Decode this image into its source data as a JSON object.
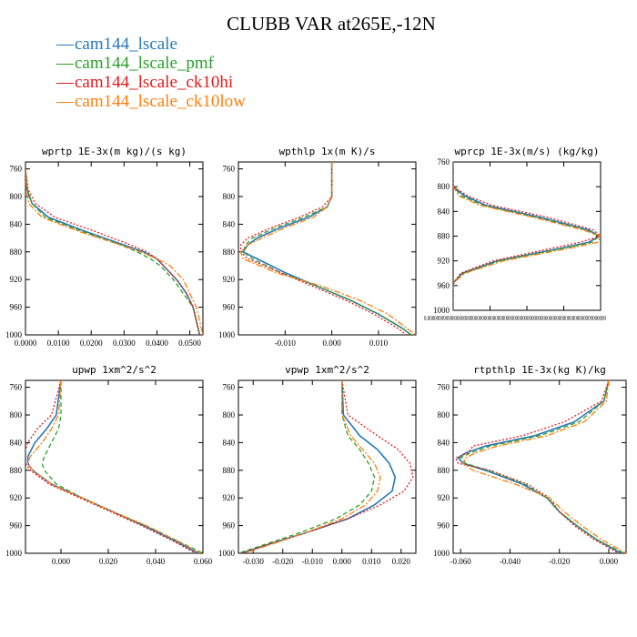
{
  "page": {
    "title": "CLUBB VAR at265E,-12N"
  },
  "legend": [
    {
      "label": "cam144_lscale",
      "color": "#2878b8"
    },
    {
      "label": "cam144_lscale_pmf",
      "color": "#2ca02c"
    },
    {
      "label": "cam144_lscale_ck10hi",
      "color": "#e41a1c"
    },
    {
      "label": "cam144_lscale_ck10low",
      "color": "#ff7f0e"
    }
  ],
  "chart_data": [
    {
      "type": "line",
      "title": "wprtp  1E-3x(m kg)/(s kg)",
      "xlim": [
        0,
        0.054
      ],
      "ylim": [
        750,
        1000
      ],
      "y_reversed": true,
      "xticks": [
        0,
        0.01,
        0.02,
        0.03,
        0.04,
        0.05
      ],
      "xticklabels": [
        "0.0000",
        "0.0100",
        "0.0200",
        "0.0300",
        "0.0400",
        "0.0500"
      ],
      "yticks": [
        760,
        800,
        840,
        880,
        920,
        960,
        1000
      ],
      "yticklabels": [
        "760",
        "800",
        "840",
        "880",
        "920",
        "960",
        "1000"
      ],
      "series": [
        {
          "name": "cam144_lscale",
          "y": [
            760,
            790,
            810,
            830,
            850,
            870,
            880,
            890,
            900,
            920,
            940,
            960,
            980,
            1000
          ],
          "x": [
            0,
            0.0005,
            0.002,
            0.007,
            0.018,
            0.03,
            0.036,
            0.04,
            0.042,
            0.046,
            0.049,
            0.051,
            0.052,
            0.053
          ]
        },
        {
          "name": "cam144_lscale_pmf",
          "y": [
            760,
            790,
            810,
            830,
            850,
            870,
            880,
            890,
            900,
            920,
            940,
            960,
            980,
            1000
          ],
          "x": [
            0,
            0.0005,
            0.002,
            0.006,
            0.017,
            0.029,
            0.034,
            0.038,
            0.041,
            0.045,
            0.048,
            0.051,
            0.052,
            0.053
          ]
        },
        {
          "name": "cam144_lscale_ck10hi",
          "y": [
            760,
            790,
            810,
            830,
            850,
            870,
            880,
            890,
            900,
            920,
            940,
            960,
            980,
            1000
          ],
          "x": [
            0,
            0.0008,
            0.003,
            0.009,
            0.021,
            0.032,
            0.037,
            0.04,
            0.042,
            0.046,
            0.049,
            0.051,
            0.052,
            0.053
          ]
        },
        {
          "name": "cam144_lscale_ck10low",
          "y": [
            760,
            790,
            810,
            830,
            850,
            870,
            880,
            890,
            900,
            920,
            940,
            960,
            980,
            1000
          ],
          "x": [
            0,
            0.0003,
            0.001,
            0.005,
            0.016,
            0.029,
            0.035,
            0.04,
            0.044,
            0.048,
            0.05,
            0.052,
            0.053,
            0.054
          ]
        }
      ]
    },
    {
      "type": "line",
      "title": "wpthlp  1x(m K)/s",
      "xlim": [
        -0.02,
        0.018
      ],
      "ylim": [
        750,
        1000
      ],
      "y_reversed": true,
      "xticks": [
        -0.01,
        0,
        0.01
      ],
      "xticklabels": [
        "-0.010",
        "0.000",
        "0.010"
      ],
      "yticks": [
        760,
        800,
        840,
        880,
        920,
        960,
        1000
      ],
      "yticklabels": [
        "760",
        "800",
        "840",
        "880",
        "920",
        "960",
        "1000"
      ],
      "series": [
        {
          "name": "cam144_lscale",
          "y": [
            750,
            800,
            815,
            830,
            845,
            860,
            870,
            880,
            890,
            910,
            930,
            950,
            970,
            990,
            1000
          ],
          "x": [
            0,
            0,
            -0.001,
            -0.005,
            -0.011,
            -0.016,
            -0.018,
            -0.019,
            -0.016,
            -0.01,
            -0.003,
            0.004,
            0.01,
            0.015,
            0.017
          ]
        },
        {
          "name": "cam144_lscale_pmf",
          "y": [
            750,
            800,
            815,
            830,
            845,
            860,
            870,
            880,
            890,
            910,
            930,
            950,
            970,
            990,
            1000
          ],
          "x": [
            0,
            0,
            -0.001,
            -0.006,
            -0.012,
            -0.017,
            -0.0185,
            -0.019,
            -0.017,
            -0.011,
            -0.003,
            0.004,
            0.01,
            0.015,
            0.017
          ]
        },
        {
          "name": "cam144_lscale_ck10hi",
          "y": [
            750,
            800,
            815,
            830,
            845,
            860,
            870,
            880,
            890,
            910,
            930,
            950,
            970,
            990,
            1000
          ],
          "x": [
            0,
            0,
            -0.002,
            -0.007,
            -0.013,
            -0.018,
            -0.0195,
            -0.0195,
            -0.018,
            -0.011,
            -0.004,
            0.003,
            0.009,
            0.014,
            0.016
          ]
        },
        {
          "name": "cam144_lscale_ck10low",
          "y": [
            750,
            800,
            815,
            830,
            845,
            860,
            870,
            880,
            890,
            910,
            930,
            950,
            970,
            990,
            1000
          ],
          "x": [
            0,
            0,
            -0.001,
            -0.004,
            -0.01,
            -0.015,
            -0.018,
            -0.0195,
            -0.019,
            -0.012,
            -0.002,
            0.006,
            0.012,
            0.016,
            0.018
          ]
        }
      ]
    },
    {
      "type": "line",
      "title": "wprcp  1E-3x(m/s) (kg/kg)",
      "xlim": [
        0,
        1
      ],
      "ylim": [
        760,
        1000
      ],
      "y_reversed": true,
      "xticks": [
        0,
        0.25,
        0.5,
        0.75,
        1
      ],
      "xticklabels": [],
      "xaxis_label_text": "0.0000000000000000000000000000000000000000000000000000000000000000000000009000000",
      "yticks": [
        760,
        800,
        840,
        880,
        920,
        960,
        1000
      ],
      "yticklabels": [
        "760",
        "800",
        "840",
        "880",
        "920",
        "960",
        "1000"
      ],
      "series": [
        {
          "name": "cam144_lscale",
          "y": [
            760,
            800,
            815,
            830,
            850,
            870,
            880,
            890,
            900,
            920,
            940,
            955,
            960,
            1000
          ],
          "x": [
            0,
            0,
            0.08,
            0.22,
            0.6,
            0.92,
            0.99,
            0.92,
            0.72,
            0.3,
            0.06,
            0.005,
            0,
            0
          ]
        },
        {
          "name": "cam144_lscale_pmf",
          "y": [
            760,
            800,
            815,
            830,
            850,
            870,
            880,
            890,
            900,
            920,
            940,
            955,
            960,
            1000
          ],
          "x": [
            0,
            0,
            0.06,
            0.2,
            0.57,
            0.9,
            0.99,
            0.94,
            0.74,
            0.31,
            0.07,
            0.005,
            0,
            0
          ]
        },
        {
          "name": "cam144_lscale_ck10hi",
          "y": [
            760,
            800,
            815,
            830,
            850,
            870,
            880,
            890,
            900,
            920,
            940,
            955,
            960,
            1000
          ],
          "x": [
            0,
            0,
            0.1,
            0.26,
            0.65,
            0.95,
            1,
            0.86,
            0.66,
            0.27,
            0.05,
            0.005,
            0,
            0
          ]
        },
        {
          "name": "cam144_lscale_ck10low",
          "y": [
            760,
            800,
            815,
            830,
            850,
            870,
            880,
            890,
            900,
            920,
            940,
            955,
            960,
            1000
          ],
          "x": [
            0,
            0,
            0.04,
            0.18,
            0.55,
            0.88,
            1,
            0.98,
            0.78,
            0.34,
            0.08,
            0.005,
            0,
            0
          ]
        }
      ]
    },
    {
      "type": "line",
      "title": "upwp  1xm^2/s^2",
      "xlim": [
        -0.015,
        0.06
      ],
      "ylim": [
        750,
        1000
      ],
      "y_reversed": true,
      "xticks": [
        0,
        0.02,
        0.04,
        0.06
      ],
      "xticklabels": [
        "0.000",
        "0.020",
        "0.040",
        "0.060"
      ],
      "yticks": [
        760,
        800,
        840,
        880,
        920,
        960,
        1000
      ],
      "yticklabels": [
        "760",
        "800",
        "840",
        "880",
        "920",
        "960",
        "1000"
      ],
      "series": [
        {
          "name": "cam144_lscale",
          "y": [
            750,
            800,
            820,
            840,
            860,
            870,
            880,
            900,
            920,
            940,
            960,
            980,
            1000
          ],
          "x": [
            0,
            -0.002,
            -0.006,
            -0.011,
            -0.014,
            -0.014,
            -0.012,
            -0.004,
            0.009,
            0.022,
            0.035,
            0.047,
            0.058
          ]
        },
        {
          "name": "cam144_lscale_pmf",
          "y": [
            750,
            800,
            820,
            840,
            860,
            870,
            880,
            900,
            920,
            940,
            960,
            980,
            1000
          ],
          "x": [
            0,
            0,
            -0.001,
            -0.004,
            -0.007,
            -0.008,
            -0.007,
            -0.002,
            0.009,
            0.022,
            0.036,
            0.048,
            0.06
          ]
        },
        {
          "name": "cam144_lscale_ck10hi",
          "y": [
            750,
            800,
            820,
            840,
            860,
            870,
            880,
            900,
            920,
            940,
            960,
            980,
            1000
          ],
          "x": [
            0,
            -0.004,
            -0.01,
            -0.014,
            -0.016,
            -0.015,
            -0.013,
            -0.005,
            0.008,
            0.021,
            0.034,
            0.046,
            0.057
          ]
        },
        {
          "name": "cam144_lscale_ck10low",
          "y": [
            750,
            800,
            820,
            840,
            860,
            870,
            880,
            900,
            920,
            940,
            960,
            980,
            1000
          ],
          "x": [
            0,
            -0.001,
            -0.004,
            -0.008,
            -0.013,
            -0.014,
            -0.012,
            -0.004,
            0.009,
            0.022,
            0.036,
            0.048,
            0.059
          ]
        }
      ]
    },
    {
      "type": "line",
      "title": "vpwp  1xm^2/s^2",
      "xlim": [
        -0.035,
        0.025
      ],
      "ylim": [
        750,
        1000
      ],
      "y_reversed": true,
      "xticks": [
        -0.03,
        -0.02,
        -0.01,
        0,
        0.01,
        0.02
      ],
      "xticklabels": [
        "-0.030",
        "-0.020",
        "-0.010",
        "0.000",
        "0.010",
        "0.020"
      ],
      "yticks": [
        760,
        800,
        840,
        880,
        920,
        960,
        1000
      ],
      "yticklabels": [
        "760",
        "800",
        "840",
        "880",
        "920",
        "960",
        "1000"
      ],
      "series": [
        {
          "name": "cam144_lscale",
          "y": [
            750,
            800,
            830,
            850,
            870,
            890,
            910,
            930,
            950,
            970,
            990,
            1000
          ],
          "x": [
            0,
            0.0005,
            0.006,
            0.012,
            0.016,
            0.018,
            0.017,
            0.011,
            0.002,
            -0.012,
            -0.027,
            -0.034
          ]
        },
        {
          "name": "cam144_lscale_pmf",
          "y": [
            750,
            800,
            830,
            850,
            870,
            890,
            910,
            930,
            950,
            970,
            990,
            1000
          ],
          "x": [
            0,
            0,
            0.002,
            0.006,
            0.009,
            0.011,
            0.01,
            0.006,
            -0.002,
            -0.014,
            -0.028,
            -0.035
          ]
        },
        {
          "name": "cam144_lscale_ck10hi",
          "y": [
            750,
            800,
            830,
            850,
            870,
            890,
            910,
            930,
            950,
            970,
            990,
            1000
          ],
          "x": [
            0,
            0.002,
            0.012,
            0.019,
            0.023,
            0.024,
            0.021,
            0.013,
            0.002,
            -0.012,
            -0.027,
            -0.034
          ]
        },
        {
          "name": "cam144_lscale_ck10low",
          "y": [
            750,
            800,
            830,
            850,
            870,
            890,
            910,
            930,
            950,
            970,
            990,
            1000
          ],
          "x": [
            0,
            0,
            0.003,
            0.007,
            0.011,
            0.013,
            0.012,
            0.008,
            0,
            -0.012,
            -0.026,
            -0.033
          ]
        }
      ]
    },
    {
      "type": "line",
      "title": "rtpthlp  1E-3x(kg K)/kg",
      "xlim": [
        -0.063,
        0.007
      ],
      "ylim": [
        750,
        1000
      ],
      "y_reversed": true,
      "xticks": [
        -0.06,
        -0.04,
        -0.02,
        0
      ],
      "xticklabels": [
        "-0.060",
        "-0.040",
        "-0.020",
        "0.000"
      ],
      "yticks": [
        760,
        800,
        840,
        880,
        920,
        960,
        1000
      ],
      "yticklabels": [
        "760",
        "800",
        "840",
        "880",
        "920",
        "960",
        "1000"
      ],
      "series": [
        {
          "name": "cam144_lscale",
          "y": [
            750,
            780,
            810,
            830,
            845,
            855,
            862,
            870,
            880,
            900,
            920,
            940,
            960,
            980,
            1000
          ],
          "x": [
            0,
            -0.002,
            -0.014,
            -0.03,
            -0.05,
            -0.058,
            -0.061,
            -0.059,
            -0.05,
            -0.035,
            -0.025,
            -0.02,
            -0.013,
            -0.005,
            0.005
          ]
        },
        {
          "name": "cam144_lscale_pmf",
          "y": [
            750,
            780,
            810,
            830,
            845,
            855,
            862,
            870,
            880,
            900,
            920,
            940,
            960,
            980,
            1000
          ],
          "x": [
            0,
            -0.002,
            -0.012,
            -0.028,
            -0.048,
            -0.056,
            -0.06,
            -0.058,
            -0.049,
            -0.034,
            -0.025,
            -0.02,
            -0.013,
            -0.005,
            0.006
          ]
        },
        {
          "name": "cam144_lscale_ck10hi",
          "y": [
            750,
            780,
            810,
            830,
            845,
            855,
            862,
            870,
            880,
            900,
            920,
            940,
            960,
            980,
            1000
          ],
          "x": [
            0,
            -0.003,
            -0.018,
            -0.035,
            -0.055,
            -0.057,
            -0.062,
            -0.061,
            -0.048,
            -0.033,
            -0.024,
            -0.02,
            -0.014,
            -0.006,
            0.004
          ]
        },
        {
          "name": "cam144_lscale_ck10low",
          "y": [
            750,
            780,
            810,
            830,
            845,
            855,
            862,
            870,
            880,
            900,
            920,
            940,
            960,
            980,
            1000
          ],
          "x": [
            0,
            -0.001,
            -0.01,
            -0.025,
            -0.045,
            -0.054,
            -0.058,
            -0.059,
            -0.055,
            -0.038,
            -0.024,
            -0.018,
            -0.011,
            -0.003,
            0.007
          ]
        }
      ]
    }
  ]
}
